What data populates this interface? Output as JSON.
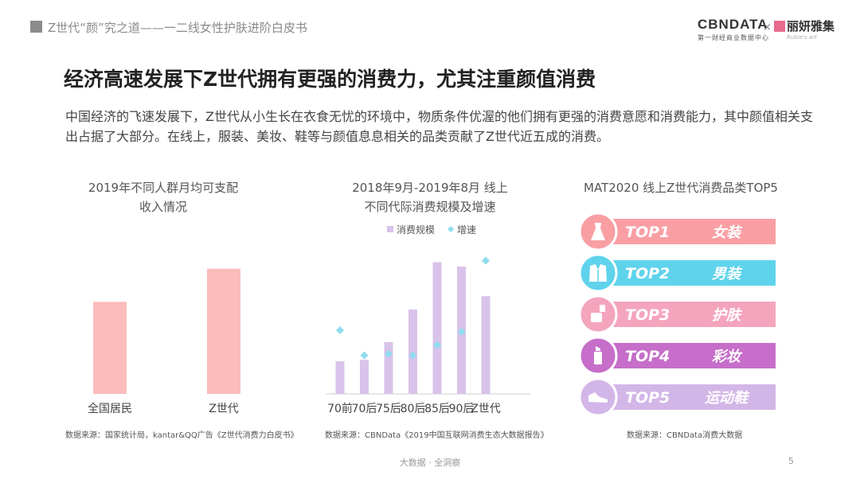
{
  "header": {
    "section_title": "Z世代“颜”究之道——一二线女性护肤进阶白皮书",
    "brand_main": "CBNDATA",
    "brand_sub": "第一财经商业数据中心",
    "brand_x": "×",
    "partner_name": "丽妍雅集",
    "partner_sub": "Rubie's art"
  },
  "main": {
    "title": "经济高速发展下Z世代拥有更强的消费力，尤其注重颜值消费",
    "description": "中国经济的飞速发展下，Z世代从小生长在衣食无忧的环境中，物质条件优渥的他们拥有更强的消费意愿和消费能力，其中颜值相关支出占据了大部分。在线上，服装、美妆、鞋等与颜值息息相关的品类贡献了Z世代近五成的消费。"
  },
  "chart1": {
    "title_line1": "2019年不同人群月均可支配",
    "title_line2": "收入情况",
    "source": "数据来源：国家统计局，kantar&QQ广告《Z世代消费力白皮书》"
  },
  "chart2": {
    "title_line1": "2018年9月-2019年8月 线上",
    "title_line2": "不同代际消费规模及增速",
    "legend_bar": "消费规模",
    "legend_point": "增速",
    "source": "数据来源：CBNData《2019中国互联网消费生态大数据报告》"
  },
  "chart3": {
    "title": "MAT2020 线上Z世代消费品类TOP5",
    "source": "数据来源：CBNData消费大数据"
  },
  "chart_data": [
    {
      "type": "bar",
      "title": "2019年不同人群月均可支配收入情况",
      "categories": [
        "全国居民",
        "Z世代"
      ],
      "values": [
        2.5,
        3.4
      ],
      "ylim": [
        0,
        4
      ],
      "grid": false,
      "color": "#fbbcbc"
    },
    {
      "type": "bar",
      "title": "2018年9月-2019年8月 线上不同代际消费规模及增速",
      "categories": [
        "70前",
        "70后",
        "75后",
        "80后",
        "85后",
        "90后",
        "Z世代"
      ],
      "series": [
        {
          "name": "消费规模",
          "type": "bar",
          "values": [
            2.2,
            2.3,
            3.5,
            5.7,
            8.9,
            8.6,
            6.6
          ],
          "color": "#d9c3ea"
        },
        {
          "name": "增速",
          "type": "scatter",
          "values": [
            4.3,
            2.6,
            2.7,
            2.6,
            3.3,
            4.2,
            9.0
          ],
          "color": "#8fdcef"
        }
      ],
      "ylim": [
        0,
        10
      ],
      "grid": false,
      "legend": "top"
    },
    {
      "type": "table",
      "title": "MAT2020 线上Z世代消费品类TOP5",
      "rows": [
        {
          "rank": "TOP1",
          "category": "女装",
          "icon": "dress-icon",
          "color": "#f99fa4"
        },
        {
          "rank": "TOP2",
          "category": "男装",
          "icon": "suit-icon",
          "color": "#5fd3ec"
        },
        {
          "rank": "TOP3",
          "category": "护肤",
          "icon": "skincare-jar-icon",
          "color": "#f4a5bd"
        },
        {
          "rank": "TOP4",
          "category": "彩妆",
          "icon": "lipstick-icon",
          "color": "#c66ec9"
        },
        {
          "rank": "TOP5",
          "category": "运动鞋",
          "icon": "sneaker-icon",
          "color": "#d3b6e8"
        }
      ]
    }
  ],
  "footer": {
    "slogan": "大数据 · 全洞察",
    "page": "5"
  }
}
